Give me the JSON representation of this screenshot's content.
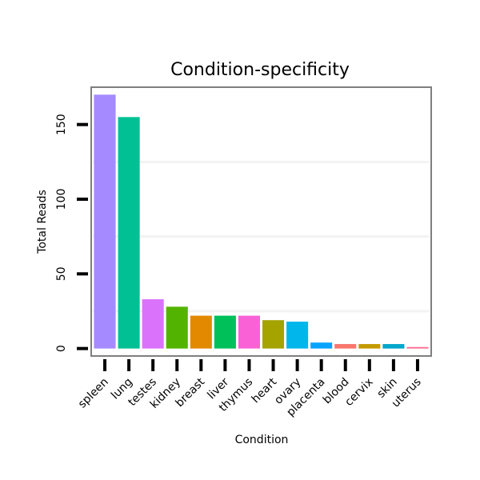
{
  "chart_data": {
    "type": "bar",
    "title": "Condition-specificity",
    "xlabel": "Condition",
    "ylabel": "Total Reads",
    "ylim": [
      -5,
      175
    ],
    "yticks": [
      0,
      50,
      100,
      150
    ],
    "categories": [
      "spleen",
      "lung",
      "testes",
      "kidney",
      "breast",
      "liver",
      "thymus",
      "heart",
      "ovary",
      "placenta",
      "blood",
      "cervix",
      "skin",
      "uterus"
    ],
    "values": [
      170,
      155,
      33,
      28,
      22,
      22,
      22,
      19,
      18,
      4,
      3,
      3,
      3,
      1
    ],
    "colors": [
      "#A58AFF",
      "#00C094",
      "#DB72FB",
      "#53B400",
      "#E38900",
      "#00C05A",
      "#FB61D7",
      "#A5A300",
      "#00B6EB",
      "#06A4FF",
      "#F8766D",
      "#C49A00",
      "#00A6CC",
      "#FF6C91"
    ]
  }
}
